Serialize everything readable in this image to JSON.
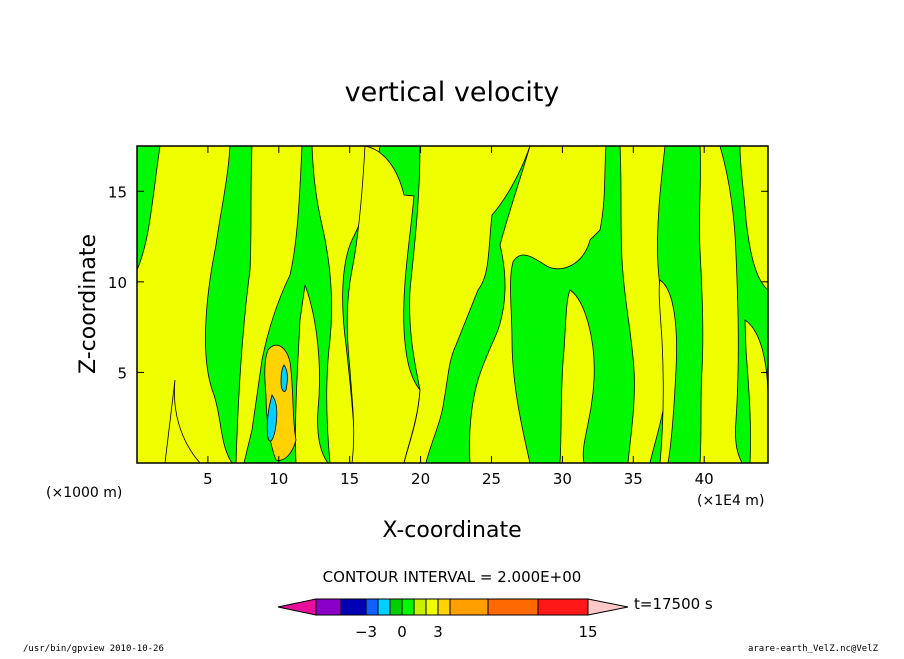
{
  "chart_data": {
    "type": "heatmap",
    "title": "vertical velocity",
    "xlabel": "X-coordinate",
    "ylabel": "Z-coordinate",
    "x_unit_label": "(×1000 m)",
    "x_scale_label": "(×1E4 m)",
    "xlim": [
      0,
      44.5
    ],
    "ylim": [
      0,
      17.5
    ],
    "x_ticks": [
      5,
      10,
      15,
      20,
      25,
      30,
      35,
      40
    ],
    "y_ticks": [
      5,
      10,
      15
    ],
    "contour_interval_text": "CONTOUR INTERVAL = 2.000E+00",
    "time_label": "t=17500 s",
    "colorbar": {
      "tick_labels": [
        {
          "value": -3,
          "label": "−3"
        },
        {
          "value": 0,
          "label": "0"
        },
        {
          "value": 3,
          "label": "3"
        },
        {
          "value": 15,
          "label": "15"
        }
      ],
      "colors": [
        "#e8109a",
        "#8a00c8",
        "#0000b4",
        "#1060ff",
        "#00d0ff",
        "#00d000",
        "#00f800",
        "#c8f000",
        "#f0ff00",
        "#ffd200",
        "#ffa000",
        "#ff6a00",
        "#ff1818",
        "#ff7878",
        "#ffc8c8"
      ]
    }
  },
  "footer": {
    "left": "/usr/bin/gpview  2010-10-26",
    "right": "arare-earth_VelZ.nc@VelZ"
  },
  "colors": {
    "green": "#00f800",
    "yellow": "#f0ff00",
    "orange": "#ffd200",
    "cyan": "#00d0ff"
  }
}
